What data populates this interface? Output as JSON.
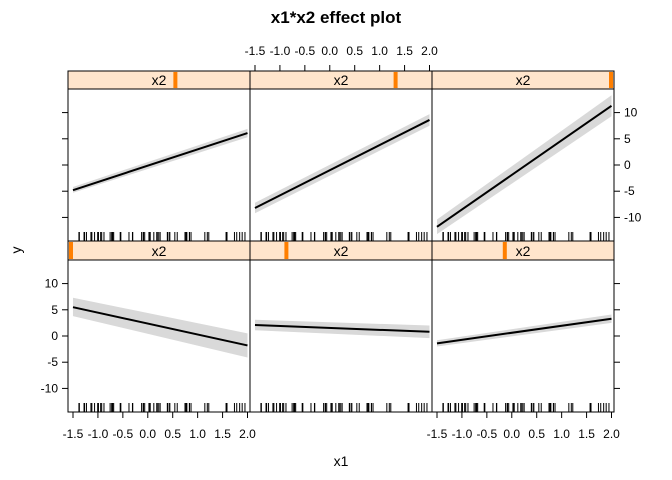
{
  "chart_data": {
    "type": "line",
    "title": "x1*x2 effect plot",
    "xlabel": "x1",
    "ylabel": "y",
    "xlim": [
      -1.6,
      2.05
    ],
    "ylim": [
      -14.5,
      14.5
    ],
    "x_ticks": [
      -1.5,
      -1.0,
      -0.5,
      0.0,
      0.5,
      1.0,
      1.5,
      2.0
    ],
    "x_tick_labels": [
      "-1.5",
      "-1.0",
      "-0.5",
      "0.0",
      "0.5",
      "1.0",
      "1.5",
      "2.0"
    ],
    "y_ticks": [
      -10,
      -5,
      0,
      5,
      10
    ],
    "y_tick_labels": [
      "-10",
      "-5",
      "0",
      "5",
      "10"
    ],
    "strip_label": "x2",
    "colors": {
      "strip_fill": "#ffe5cc",
      "strip_marker": "#ff7f00",
      "line": "#000000",
      "band": "#d9d9d9"
    },
    "panels": [
      {
        "row": "top",
        "col": 1,
        "x2_marker_fraction": 0.59,
        "x": [
          -1.5,
          2.0
        ],
        "y": [
          -4.8,
          6.1
        ],
        "lower": [
          -5.3,
          5.3
        ],
        "upper": [
          -4.2,
          6.9
        ]
      },
      {
        "row": "top",
        "col": 2,
        "x2_marker_fraction": 0.8,
        "x": [
          -1.5,
          2.0
        ],
        "y": [
          -8.2,
          8.6
        ],
        "lower": [
          -9.2,
          7.5
        ],
        "upper": [
          -7.2,
          9.7
        ]
      },
      {
        "row": "top",
        "col": 3,
        "x2_marker_fraction": 1.0,
        "x": [
          -1.5,
          2.0
        ],
        "y": [
          -11.8,
          11.3
        ],
        "lower": [
          -13.2,
          9.3
        ],
        "upper": [
          -10.4,
          13.3
        ]
      },
      {
        "row": "bottom",
        "col": 1,
        "x2_marker_fraction": 0.0,
        "x": [
          -1.5,
          2.0
        ],
        "y": [
          5.5,
          -1.8
        ],
        "lower": [
          3.8,
          -4.1
        ],
        "upper": [
          7.3,
          0.5
        ]
      },
      {
        "row": "bottom",
        "col": 2,
        "x2_marker_fraction": 0.2,
        "x": [
          -1.5,
          2.0
        ],
        "y": [
          2.1,
          0.8
        ],
        "lower": [
          1.1,
          -0.4
        ],
        "upper": [
          3.1,
          2.0
        ]
      },
      {
        "row": "bottom",
        "col": 3,
        "x2_marker_fraction": 0.4,
        "x": [
          -1.5,
          2.0
        ],
        "y": [
          -1.4,
          3.3
        ],
        "lower": [
          -2.0,
          2.5
        ],
        "upper": [
          -0.8,
          4.1
        ]
      }
    ]
  }
}
